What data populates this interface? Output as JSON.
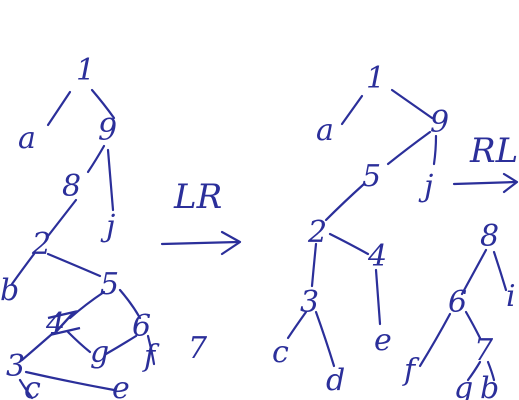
{
  "left_tree": {
    "nodes": {
      "n1": "1",
      "a": "a",
      "n9": "9",
      "n8": "8",
      "j": "j",
      "n2": "2",
      "b": "b",
      "n5": "5",
      "n4": "4",
      "n6": "6",
      "g": "g",
      "f": "f",
      "n3": "3",
      "c": "c",
      "e": "e"
    },
    "side_label": "7"
  },
  "lr_arrow": {
    "label": "LR"
  },
  "middle_tree": {
    "nodes": {
      "n1": "1",
      "a": "a",
      "n9": "9",
      "n5": "5",
      "j": "j",
      "n2": "2",
      "n4": "4",
      "n3": "3",
      "c": "c",
      "e": "e",
      "d": "d"
    }
  },
  "rl_arrow": {
    "label": "RL"
  },
  "right_tree": {
    "nodes": {
      "n8": "8",
      "i": "i",
      "n6": "6",
      "f": "f",
      "n7": "7",
      "g": "g",
      "b": "b"
    }
  }
}
